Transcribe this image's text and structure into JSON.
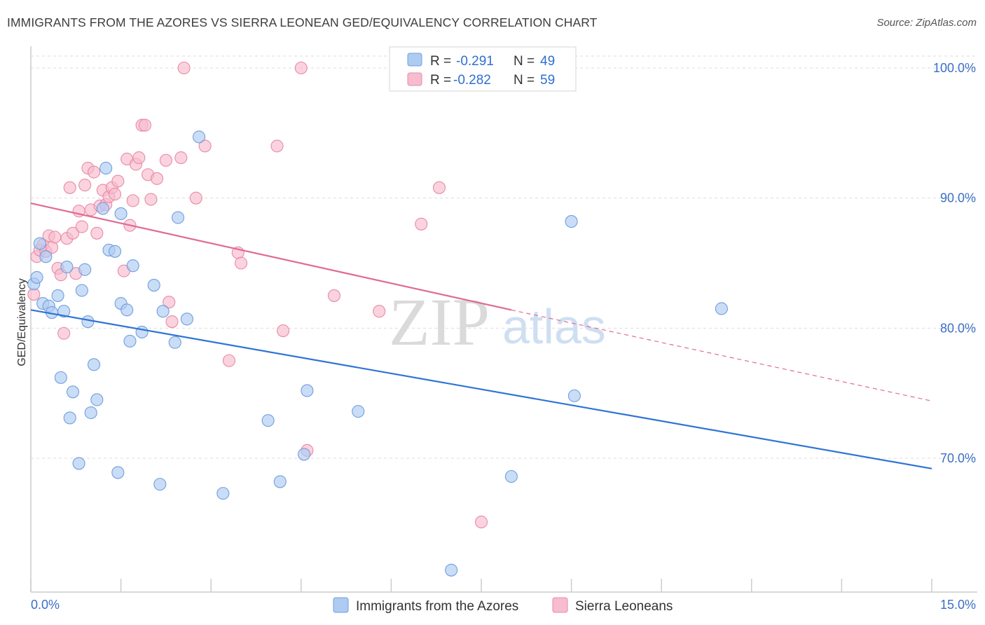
{
  "header": {
    "title": "IMMIGRANTS FROM THE AZORES VS SIERRA LEONEAN GED/EQUIVALENCY CORRELATION CHART",
    "source": "Source: ZipAtlas.com"
  },
  "watermark": {
    "zip": "ZIP",
    "atlas": "atlas"
  },
  "legend": {
    "r_label": "R =",
    "n_label": "N =",
    "rows": [
      {
        "r": "-0.291",
        "n": "49"
      },
      {
        "r": "-0.282",
        "n": "59"
      }
    ]
  },
  "chart_data": {
    "type": "scatter",
    "title": "IMMIGRANTS FROM THE AZORES VS SIERRA LEONEAN GED/EQUIVALENCY CORRELATION CHART",
    "xlabel": "",
    "ylabel": "GED/Equivalency",
    "xlim": [
      0,
      15
    ],
    "ylim": [
      60.5,
      101
    ],
    "x_tick_labels": [
      "0.0%",
      "15.0%"
    ],
    "y_ticks": [
      70,
      80,
      90,
      100
    ],
    "y_tick_labels": [
      "70.0%",
      "80.0%",
      "90.0%",
      "100.0%"
    ],
    "colors": {
      "azores_fill": "#aecbf2",
      "azores_stroke": "#6f9fdc",
      "azores_line": "#2f73d6",
      "sierra_fill": "#f7bccd",
      "sierra_stroke": "#e98aa8",
      "sierra_line": "#e06b92",
      "grid": "#dddddd",
      "axis": "#cccccc"
    },
    "series": [
      {
        "name": "Immigrants from the Azores",
        "r": -0.291,
        "n": 49,
        "trend": {
          "x0": 0.0,
          "y0": 81.4,
          "x1": 15.0,
          "y1": 69.2
        },
        "points": [
          [
            0.05,
            83.4
          ],
          [
            0.1,
            83.9
          ],
          [
            0.15,
            86.5
          ],
          [
            0.2,
            81.9
          ],
          [
            0.25,
            85.5
          ],
          [
            0.3,
            81.7
          ],
          [
            0.35,
            81.2
          ],
          [
            0.45,
            82.5
          ],
          [
            0.5,
            76.2
          ],
          [
            0.55,
            81.3
          ],
          [
            0.6,
            84.7
          ],
          [
            0.65,
            73.1
          ],
          [
            0.7,
            75.1
          ],
          [
            0.8,
            69.6
          ],
          [
            0.85,
            82.9
          ],
          [
            0.9,
            84.5
          ],
          [
            0.95,
            80.5
          ],
          [
            1.0,
            73.5
          ],
          [
            1.05,
            77.2
          ],
          [
            1.1,
            74.5
          ],
          [
            1.2,
            89.2
          ],
          [
            1.25,
            92.3
          ],
          [
            1.3,
            86.0
          ],
          [
            1.4,
            85.9
          ],
          [
            1.45,
            68.9
          ],
          [
            1.5,
            88.8
          ],
          [
            1.5,
            81.9
          ],
          [
            1.6,
            81.4
          ],
          [
            1.65,
            79.0
          ],
          [
            1.7,
            84.8
          ],
          [
            1.85,
            79.7
          ],
          [
            2.05,
            83.3
          ],
          [
            2.15,
            68.0
          ],
          [
            2.2,
            81.3
          ],
          [
            2.4,
            78.9
          ],
          [
            2.45,
            88.5
          ],
          [
            2.6,
            80.7
          ],
          [
            2.8,
            94.7
          ],
          [
            3.2,
            67.3
          ],
          [
            3.95,
            72.9
          ],
          [
            4.15,
            68.2
          ],
          [
            4.55,
            70.3
          ],
          [
            4.6,
            75.2
          ],
          [
            5.45,
            73.6
          ],
          [
            7.0,
            61.4
          ],
          [
            8.0,
            68.6
          ],
          [
            9.0,
            88.2
          ],
          [
            9.05,
            74.8
          ],
          [
            11.5,
            81.5
          ]
        ]
      },
      {
        "name": "Sierra Leoneans",
        "r": -0.282,
        "n": 59,
        "trend": {
          "x0": 0.0,
          "y0": 89.6,
          "x1": 8.0,
          "y1": 81.4,
          "dash_x1": 15.0,
          "dash_y1": 74.4
        },
        "points": [
          [
            0.05,
            82.6
          ],
          [
            0.1,
            85.5
          ],
          [
            0.15,
            86.0
          ],
          [
            0.2,
            86.4
          ],
          [
            0.25,
            85.9
          ],
          [
            0.3,
            87.1
          ],
          [
            0.35,
            86.2
          ],
          [
            0.4,
            87.0
          ],
          [
            0.45,
            84.6
          ],
          [
            0.5,
            84.1
          ],
          [
            0.55,
            79.6
          ],
          [
            0.6,
            86.9
          ],
          [
            0.65,
            90.8
          ],
          [
            0.7,
            87.3
          ],
          [
            0.75,
            84.2
          ],
          [
            0.8,
            89.0
          ],
          [
            0.85,
            87.8
          ],
          [
            0.9,
            91.0
          ],
          [
            0.95,
            92.3
          ],
          [
            1.0,
            89.1
          ],
          [
            1.05,
            92.0
          ],
          [
            1.1,
            87.3
          ],
          [
            1.15,
            89.4
          ],
          [
            1.2,
            90.6
          ],
          [
            1.25,
            89.5
          ],
          [
            1.3,
            90.1
          ],
          [
            1.35,
            90.8
          ],
          [
            1.4,
            90.3
          ],
          [
            1.45,
            91.3
          ],
          [
            1.55,
            84.4
          ],
          [
            1.6,
            93.0
          ],
          [
            1.65,
            87.9
          ],
          [
            1.7,
            89.8
          ],
          [
            1.75,
            92.6
          ],
          [
            1.8,
            93.1
          ],
          [
            1.85,
            95.6
          ],
          [
            1.9,
            95.6
          ],
          [
            1.95,
            91.8
          ],
          [
            2.0,
            89.9
          ],
          [
            2.1,
            91.5
          ],
          [
            2.25,
            92.9
          ],
          [
            2.3,
            82.0
          ],
          [
            2.35,
            80.5
          ],
          [
            2.5,
            93.1
          ],
          [
            2.55,
            100.0
          ],
          [
            2.75,
            90.0
          ],
          [
            2.9,
            94.0
          ],
          [
            3.3,
            77.5
          ],
          [
            3.45,
            85.8
          ],
          [
            3.5,
            85.0
          ],
          [
            4.1,
            94.0
          ],
          [
            4.2,
            79.8
          ],
          [
            4.5,
            100.0
          ],
          [
            4.6,
            70.6
          ],
          [
            5.05,
            82.5
          ],
          [
            5.8,
            81.3
          ],
          [
            6.5,
            88.0
          ],
          [
            6.8,
            90.8
          ],
          [
            7.5,
            65.1
          ]
        ]
      }
    ]
  }
}
